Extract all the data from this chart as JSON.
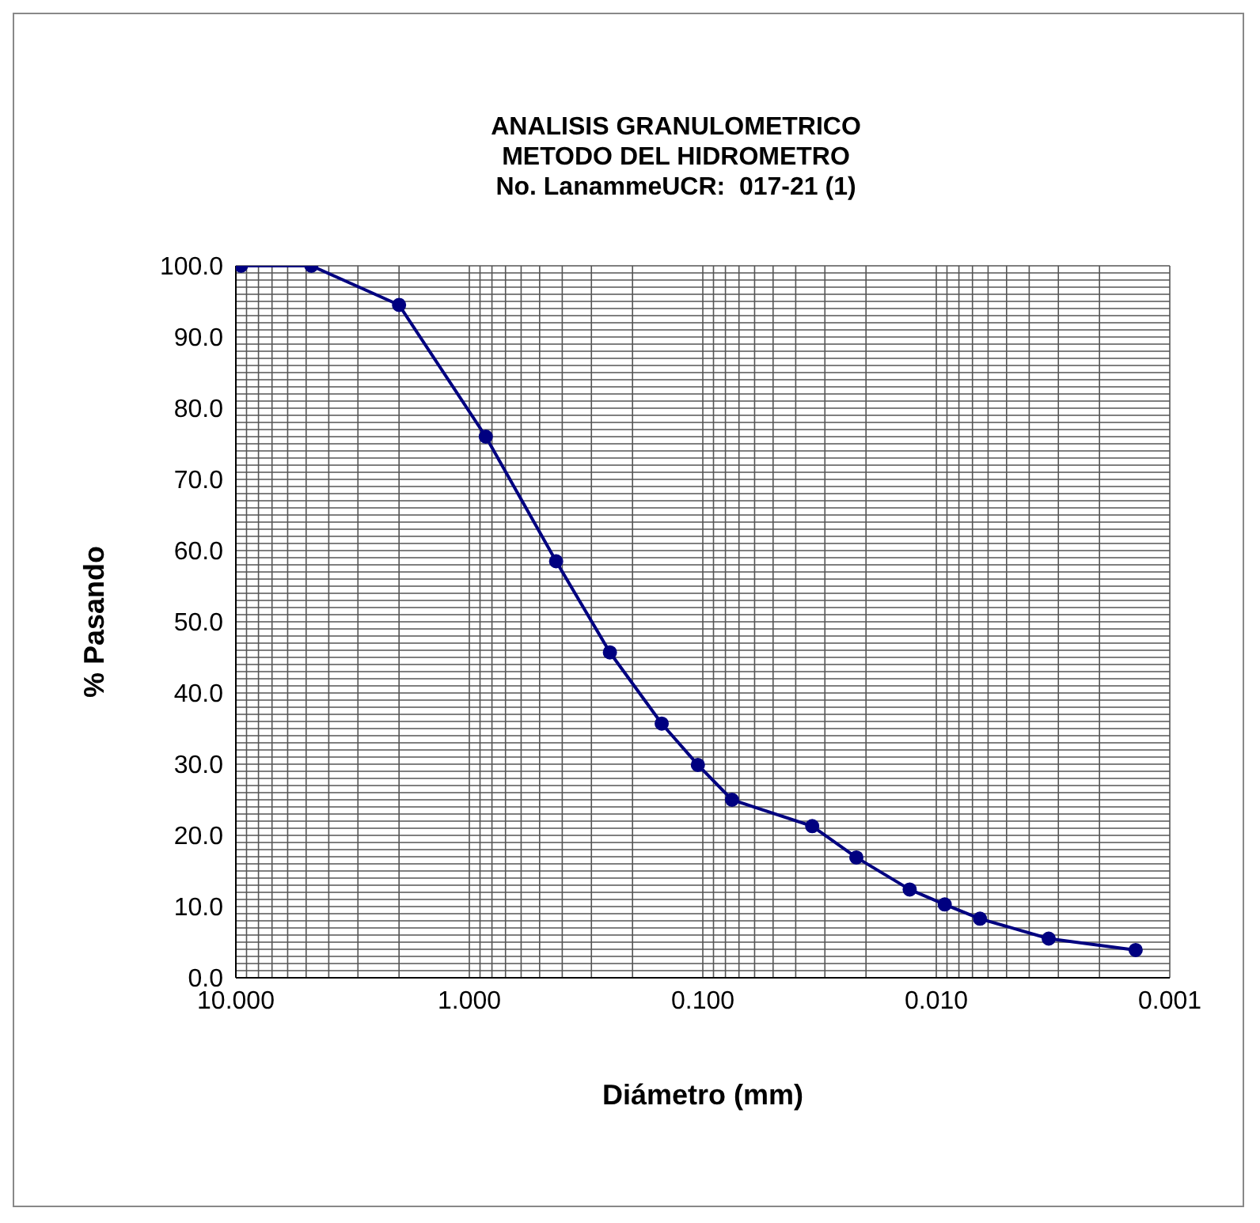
{
  "chart_data": {
    "type": "line",
    "title": "ANALISIS GRANULOMETRICO\nMETODO DEL HIDROMETRO\nNo. LanammeUCR:  017-21 (1)",
    "xlabel": "Diámetro (mm)",
    "ylabel": "% Pasando",
    "x": [
      9.5,
      4.75,
      2.0,
      0.85,
      0.425,
      0.25,
      0.15,
      0.105,
      0.075,
      0.034,
      0.022,
      0.013,
      0.0092,
      0.0065,
      0.0033,
      0.0014
    ],
    "series": [
      {
        "color": "#000080",
        "values": [
          100.0,
          100.0,
          94.5,
          76.0,
          58.5,
          45.7,
          35.7,
          29.9,
          25.0,
          21.3,
          16.9,
          12.4,
          10.3,
          8.3,
          5.5,
          3.9
        ]
      }
    ],
    "log": "x",
    "xlim": [
      10,
      0.001
    ],
    "xticks": [
      {
        "value": 10,
        "label": "10.000"
      },
      {
        "value": 9,
        "label": null
      },
      {
        "value": 8,
        "label": null
      },
      {
        "value": 7,
        "label": null
      },
      {
        "value": 6,
        "label": null
      },
      {
        "value": 5,
        "label": null
      },
      {
        "value": 4,
        "label": null
      },
      {
        "value": 3,
        "label": null
      },
      {
        "value": 2,
        "label": null
      },
      {
        "value": 1,
        "label": "1.000"
      },
      {
        "value": 0.9,
        "label": null
      },
      {
        "value": 0.8,
        "label": null
      },
      {
        "value": 0.7,
        "label": null
      },
      {
        "value": 0.6,
        "label": null
      },
      {
        "value": 0.5,
        "label": null
      },
      {
        "value": 0.4,
        "label": null
      },
      {
        "value": 0.3,
        "label": null
      },
      {
        "value": 0.2,
        "label": null
      },
      {
        "value": 0.1,
        "label": "0.100"
      },
      {
        "value": 0.09,
        "label": null
      },
      {
        "value": 0.08,
        "label": null
      },
      {
        "value": 0.07,
        "label": null
      },
      {
        "value": 0.06,
        "label": null
      },
      {
        "value": 0.05,
        "label": null
      },
      {
        "value": 0.04,
        "label": null
      },
      {
        "value": 0.03,
        "label": null
      },
      {
        "value": 0.02,
        "label": null
      },
      {
        "value": 0.01,
        "label": "0.010"
      },
      {
        "value": 0.009,
        "label": null
      },
      {
        "value": 0.008,
        "label": null
      },
      {
        "value": 0.007,
        "label": null
      },
      {
        "value": 0.006,
        "label": null
      },
      {
        "value": 0.005,
        "label": null
      },
      {
        "value": 0.004,
        "label": null
      },
      {
        "value": 0.003,
        "label": null
      },
      {
        "value": 0.002,
        "label": null
      },
      {
        "value": 0.001,
        "label": "0.001"
      }
    ],
    "ylim": [
      0,
      100
    ],
    "yticks": [
      {
        "value": 0,
        "label": "0.0"
      },
      {
        "value": 1,
        "label": null
      },
      {
        "value": 2,
        "label": null
      },
      {
        "value": 3,
        "label": null
      },
      {
        "value": 4,
        "label": null
      },
      {
        "value": 5,
        "label": null
      },
      {
        "value": 6,
        "label": null
      },
      {
        "value": 7,
        "label": null
      },
      {
        "value": 8,
        "label": null
      },
      {
        "value": 9,
        "label": null
      },
      {
        "value": 10,
        "label": "10.0"
      },
      {
        "value": 11,
        "label": null
      },
      {
        "value": 12,
        "label": null
      },
      {
        "value": 13,
        "label": null
      },
      {
        "value": 14,
        "label": null
      },
      {
        "value": 15,
        "label": null
      },
      {
        "value": 16,
        "label": null
      },
      {
        "value": 17,
        "label": null
      },
      {
        "value": 18,
        "label": null
      },
      {
        "value": 19,
        "label": null
      },
      {
        "value": 20,
        "label": "20.0"
      },
      {
        "value": 21,
        "label": null
      },
      {
        "value": 22,
        "label": null
      },
      {
        "value": 23,
        "label": null
      },
      {
        "value": 24,
        "label": null
      },
      {
        "value": 25,
        "label": null
      },
      {
        "value": 26,
        "label": null
      },
      {
        "value": 27,
        "label": null
      },
      {
        "value": 28,
        "label": null
      },
      {
        "value": 29,
        "label": null
      },
      {
        "value": 30,
        "label": "30.0"
      },
      {
        "value": 31,
        "label": null
      },
      {
        "value": 32,
        "label": null
      },
      {
        "value": 33,
        "label": null
      },
      {
        "value": 34,
        "label": null
      },
      {
        "value": 35,
        "label": null
      },
      {
        "value": 36,
        "label": null
      },
      {
        "value": 37,
        "label": null
      },
      {
        "value": 38,
        "label": null
      },
      {
        "value": 39,
        "label": null
      },
      {
        "value": 40,
        "label": "40.0"
      },
      {
        "value": 41,
        "label": null
      },
      {
        "value": 42,
        "label": null
      },
      {
        "value": 43,
        "label": null
      },
      {
        "value": 44,
        "label": null
      },
      {
        "value": 45,
        "label": null
      },
      {
        "value": 46,
        "label": null
      },
      {
        "value": 47,
        "label": null
      },
      {
        "value": 48,
        "label": null
      },
      {
        "value": 49,
        "label": null
      },
      {
        "value": 50,
        "label": "50.0"
      },
      {
        "value": 51,
        "label": null
      },
      {
        "value": 52,
        "label": null
      },
      {
        "value": 53,
        "label": null
      },
      {
        "value": 54,
        "label": null
      },
      {
        "value": 55,
        "label": null
      },
      {
        "value": 56,
        "label": null
      },
      {
        "value": 57,
        "label": null
      },
      {
        "value": 58,
        "label": null
      },
      {
        "value": 59,
        "label": null
      },
      {
        "value": 60,
        "label": "60.0"
      },
      {
        "value": 61,
        "label": null
      },
      {
        "value": 62,
        "label": null
      },
      {
        "value": 63,
        "label": null
      },
      {
        "value": 64,
        "label": null
      },
      {
        "value": 65,
        "label": null
      },
      {
        "value": 66,
        "label": null
      },
      {
        "value": 67,
        "label": null
      },
      {
        "value": 68,
        "label": null
      },
      {
        "value": 69,
        "label": null
      },
      {
        "value": 70,
        "label": "70.0"
      },
      {
        "value": 71,
        "label": null
      },
      {
        "value": 72,
        "label": null
      },
      {
        "value": 73,
        "label": null
      },
      {
        "value": 74,
        "label": null
      },
      {
        "value": 75,
        "label": null
      },
      {
        "value": 76,
        "label": null
      },
      {
        "value": 77,
        "label": null
      },
      {
        "value": 78,
        "label": null
      },
      {
        "value": 79,
        "label": null
      },
      {
        "value": 80,
        "label": "80.0"
      },
      {
        "value": 81,
        "label": null
      },
      {
        "value": 82,
        "label": null
      },
      {
        "value": 83,
        "label": null
      },
      {
        "value": 84,
        "label": null
      },
      {
        "value": 85,
        "label": null
      },
      {
        "value": 86,
        "label": null
      },
      {
        "value": 87,
        "label": null
      },
      {
        "value": 88,
        "label": null
      },
      {
        "value": 89,
        "label": null
      },
      {
        "value": 90,
        "label": "90.0"
      },
      {
        "value": 91,
        "label": null
      },
      {
        "value": 92,
        "label": null
      },
      {
        "value": 93,
        "label": null
      },
      {
        "value": 94,
        "label": null
      },
      {
        "value": 95,
        "label": null
      },
      {
        "value": 96,
        "label": null
      },
      {
        "value": 97,
        "label": null
      },
      {
        "value": 98,
        "label": null
      },
      {
        "value": 99,
        "label": null
      },
      {
        "value": 100,
        "label": "100.0"
      }
    ],
    "grid": true,
    "marker": "circle",
    "line_style": "solid"
  }
}
